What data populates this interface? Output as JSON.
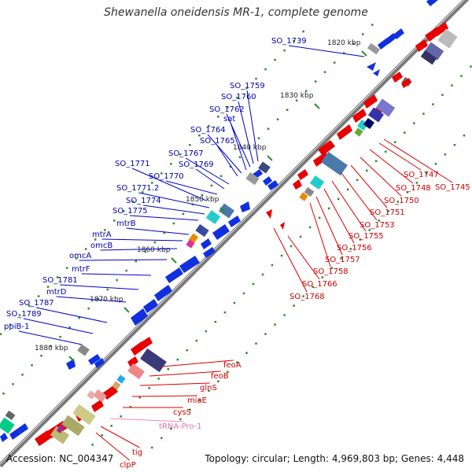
{
  "title": "Shewanella oneidensis MR-1, complete genome",
  "accession": "Accession: NC_004347",
  "summary": "Topology: circular; Length: 4,969,803 bp; Genes: 4,448",
  "ticks": [
    "1820 kbp",
    "1830 kbp",
    "1840 kbp",
    "1850 kbp",
    "1860 kbp",
    "1870 kbp",
    "1880 kbp"
  ],
  "forward_genes": [
    "SO_1739",
    "SO_1759",
    "SO_1760",
    "SO_1762",
    "sat",
    "SO_1764",
    "SO_1765",
    "SO_1767",
    "SO_1769",
    "SO_1770",
    "SO_1771",
    "SO_1771.2",
    "SO_1774",
    "SO_1775",
    "mtrB",
    "mtrA",
    "omcB",
    "omcA",
    "mtrF",
    "SO_1781",
    "mtrD",
    "SO_1787",
    "SO_1789",
    "ppiB-1"
  ],
  "reverse_genes": [
    "SO_1745",
    "SO_1747",
    "SO_1748",
    "SO_1750",
    "SO_1751",
    "SO_1753",
    "SO_1755",
    "SO_1756",
    "SO_1757",
    "SO_1758",
    "SO_1766",
    "SO_1768",
    "feoA",
    "feoB",
    "glnS",
    "miaE",
    "cysS",
    "tRNA-Pro-1",
    "tig",
    "clpP"
  ],
  "colors": {
    "forward": "#0000dd",
    "reverse": "#ee0000",
    "trna": "#ee88bb",
    "backbone": "#8a8a8a",
    "tick": "#2e8b2e"
  }
}
